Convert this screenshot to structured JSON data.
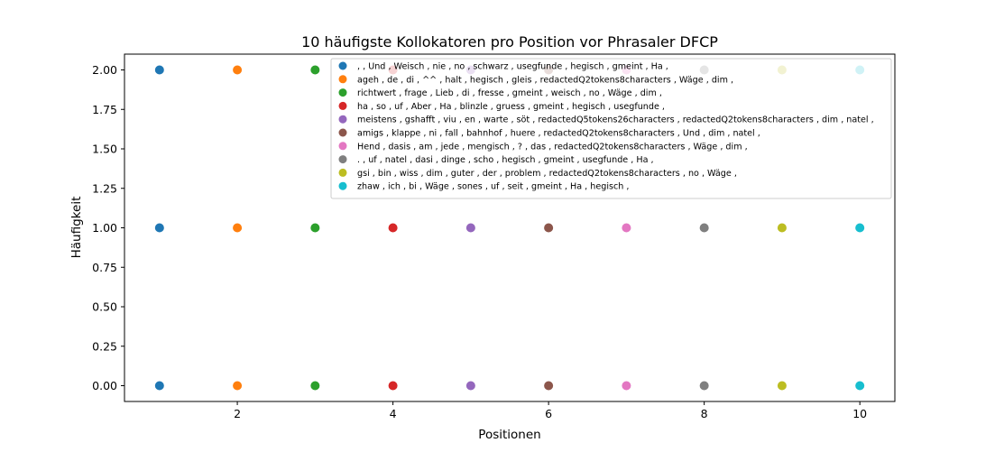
{
  "chart_data": {
    "type": "scatter",
    "title": "10 häufigste Kollokatoren pro Position vor Phrasaler DFCP",
    "xlabel": "Positionen",
    "ylabel": "Häufigkeit",
    "xlim": [
      0.55,
      10.45
    ],
    "ylim": [
      -0.1,
      2.1
    ],
    "xticks": [
      2,
      4,
      6,
      8,
      10
    ],
    "yticks": [
      0.0,
      0.25,
      0.5,
      0.75,
      1.0,
      1.25,
      1.5,
      1.75,
      2.0
    ],
    "ytick_labels": [
      "0.00",
      "0.25",
      "0.50",
      "0.75",
      "1.00",
      "1.25",
      "1.50",
      "1.75",
      "2.00"
    ],
    "grid": false,
    "legend_position": "top-right",
    "series": [
      {
        "name": ", , Und , Weisch , nie , no , schwarz , usegfunde , hegisch , gmeint , Ha ,",
        "color": "#1f77b4",
        "x": [
          1,
          1,
          1
        ],
        "y": [
          2,
          1,
          0
        ]
      },
      {
        "name": "ageh , de , di , ^^ , halt , hegisch , gleis , redactedQ2tokens8characters , Wäge , dim ,",
        "color": "#ff7f0e",
        "x": [
          2,
          2,
          2
        ],
        "y": [
          2,
          1,
          0
        ]
      },
      {
        "name": "richtwert , frage , Lieb , di , fresse , gmeint , weisch , no , Wäge , dim ,",
        "color": "#2ca02c",
        "x": [
          3,
          3,
          3
        ],
        "y": [
          2,
          1,
          0
        ]
      },
      {
        "name": "ha , so , uf , Aber , Ha , blinzle , gruess , gmeint , hegisch , usegfunde ,",
        "color": "#d62728",
        "x": [
          4,
          4,
          4
        ],
        "y": [
          2,
          1,
          0
        ]
      },
      {
        "name": "meistens , gshafft , viu , en , warte , söt , redactedQ5tokens26characters , redactedQ2tokens8characters , dim , natel ,",
        "color": "#9467bd",
        "x": [
          5,
          5,
          5
        ],
        "y": [
          2,
          1,
          0
        ]
      },
      {
        "name": "amigs , klappe , ni , fall , bahnhof , huere , redactedQ2tokens8characters , Und , dim , natel ,",
        "color": "#8c564b",
        "x": [
          6,
          6,
          6
        ],
        "y": [
          2,
          1,
          0
        ]
      },
      {
        "name": "Hend , dasis , am , jede , mengisch , ? , das , redactedQ2tokens8characters , Wäge , dim ,",
        "color": "#e377c2",
        "x": [
          7,
          7,
          7
        ],
        "y": [
          2,
          1,
          0
        ]
      },
      {
        "name": ". , uf , natel , dasi , dinge , scho , hegisch , gmeint , usegfunde , Ha ,",
        "color": "#7f7f7f",
        "x": [
          8,
          8,
          8
        ],
        "y": [
          2,
          1,
          0
        ]
      },
      {
        "name": "gsi , bin , wiss , dim , guter , der , problem , redactedQ2tokens8characters , no , Wäge ,",
        "color": "#bcbd22",
        "x": [
          9,
          9,
          9
        ],
        "y": [
          2,
          1,
          0
        ]
      },
      {
        "name": "zhaw , ich , bi , Wäge , sones , uf , seit , gmeint , Ha , hegisch ,",
        "color": "#17becf",
        "x": [
          10,
          10,
          10
        ],
        "y": [
          2,
          1,
          0
        ]
      }
    ]
  }
}
